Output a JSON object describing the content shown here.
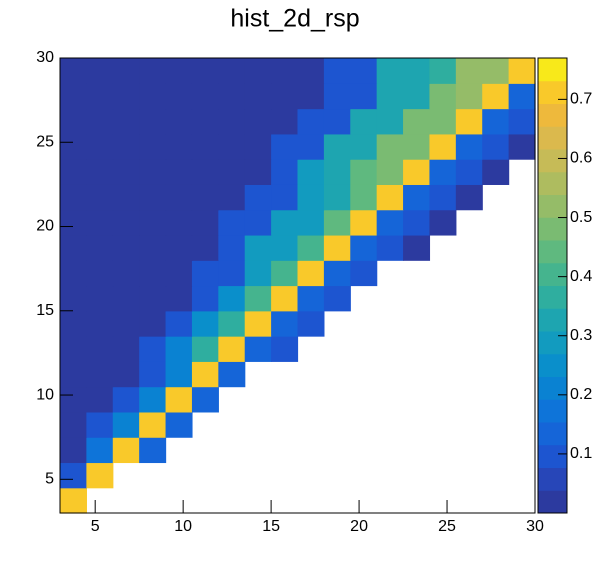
{
  "chart_data": {
    "type": "heatmap",
    "title": "hist_2d_rsp",
    "xbins": [
      3,
      4.5,
      6,
      7.5,
      9,
      10.5,
      12,
      13.5,
      15,
      16.5,
      18,
      19.5,
      21,
      22.5,
      24,
      25.5,
      27,
      28.5,
      30
    ],
    "ybins": [
      3,
      4.5,
      6,
      7.5,
      9,
      10.5,
      12,
      13.5,
      15,
      16.5,
      18,
      19.5,
      21,
      22.5,
      24,
      25.5,
      27,
      28.5,
      30
    ],
    "z": [
      [
        0.7,
        null,
        null,
        null,
        null,
        null,
        null,
        null,
        null,
        null,
        null,
        null,
        null,
        null,
        null,
        null,
        null,
        null
      ],
      [
        0.08,
        0.7,
        null,
        null,
        null,
        null,
        null,
        null,
        null,
        null,
        null,
        null,
        null,
        null,
        null,
        null,
        null,
        null
      ],
      [
        0.03,
        0.19,
        0.7,
        0.15,
        null,
        null,
        null,
        null,
        null,
        null,
        null,
        null,
        null,
        null,
        null,
        null,
        null,
        null
      ],
      [
        0.03,
        0.08,
        0.21,
        0.7,
        0.15,
        null,
        null,
        null,
        null,
        null,
        null,
        null,
        null,
        null,
        null,
        null,
        null,
        null
      ],
      [
        0.03,
        0.03,
        0.08,
        0.22,
        0.7,
        0.15,
        null,
        null,
        null,
        null,
        null,
        null,
        null,
        null,
        null,
        null,
        null,
        null
      ],
      [
        0.03,
        0.03,
        0.03,
        0.08,
        0.23,
        0.7,
        0.15,
        null,
        null,
        null,
        null,
        null,
        null,
        null,
        null,
        null,
        null,
        null
      ],
      [
        0.03,
        0.03,
        0.03,
        0.08,
        0.23,
        0.36,
        0.7,
        0.15,
        0.08,
        null,
        null,
        null,
        null,
        null,
        null,
        null,
        null,
        null
      ],
      [
        0.03,
        0.03,
        0.03,
        0.03,
        0.08,
        0.24,
        0.38,
        0.7,
        0.15,
        0.08,
        null,
        null,
        null,
        null,
        null,
        null,
        null,
        null
      ],
      [
        0.03,
        0.03,
        0.03,
        0.03,
        0.03,
        0.08,
        0.26,
        0.39,
        0.7,
        0.15,
        0.08,
        null,
        null,
        null,
        null,
        null,
        null,
        null
      ],
      [
        0.03,
        0.03,
        0.03,
        0.03,
        0.03,
        0.08,
        0.08,
        0.27,
        0.41,
        0.7,
        0.15,
        0.08,
        null,
        null,
        null,
        null,
        null,
        null
      ],
      [
        0.03,
        0.03,
        0.03,
        0.03,
        0.03,
        0.03,
        0.08,
        0.27,
        0.28,
        0.42,
        0.7,
        0.15,
        0.08,
        0.03,
        null,
        null,
        null,
        null
      ],
      [
        0.03,
        0.03,
        0.03,
        0.03,
        0.03,
        0.03,
        0.08,
        0.08,
        0.28,
        0.29,
        0.44,
        0.7,
        0.15,
        0.08,
        0.03,
        null,
        null,
        null
      ],
      [
        0.03,
        0.03,
        0.03,
        0.03,
        0.03,
        0.03,
        0.03,
        0.08,
        0.08,
        0.29,
        0.31,
        0.45,
        0.7,
        0.15,
        0.08,
        0.03,
        null,
        null
      ],
      [
        0.03,
        0.03,
        0.03,
        0.03,
        0.03,
        0.03,
        0.03,
        0.03,
        0.08,
        0.29,
        0.31,
        0.45,
        0.47,
        0.7,
        0.15,
        0.08,
        0.03,
        null
      ],
      [
        0.03,
        0.03,
        0.03,
        0.03,
        0.03,
        0.03,
        0.03,
        0.03,
        0.08,
        0.08,
        0.31,
        0.32,
        0.47,
        0.48,
        0.7,
        0.15,
        0.08,
        0.03
      ],
      [
        0.03,
        0.03,
        0.03,
        0.03,
        0.03,
        0.03,
        0.03,
        0.03,
        0.03,
        0.08,
        0.08,
        0.32,
        0.33,
        0.48,
        0.5,
        0.7,
        0.15,
        0.08
      ],
      [
        0.03,
        0.03,
        0.03,
        0.03,
        0.03,
        0.03,
        0.03,
        0.03,
        0.03,
        0.03,
        0.08,
        0.08,
        0.33,
        0.34,
        0.5,
        0.51,
        0.7,
        0.15
      ],
      [
        0.03,
        0.03,
        0.03,
        0.03,
        0.03,
        0.03,
        0.03,
        0.03,
        0.03,
        0.03,
        0.08,
        0.08,
        0.33,
        0.34,
        0.36,
        0.51,
        0.53,
        0.7
      ]
    ],
    "xlim": [
      3,
      30
    ],
    "ylim": [
      3,
      30
    ],
    "xticks": [
      5,
      10,
      15,
      20,
      25,
      30
    ],
    "yticks": [
      5,
      10,
      15,
      20,
      25,
      30
    ],
    "zlim": [
      0,
      0.77
    ],
    "zticks": [
      0.1,
      0.2,
      0.3,
      0.4,
      0.5,
      0.6,
      0.7
    ],
    "palette": [
      "#2c3a9f",
      "#2746b8",
      "#1d55d0",
      "#1565d8",
      "#0e74d9",
      "#0a82d2",
      "#0a8fcb",
      "#129bbf",
      "#1ea5b0",
      "#2fae9f",
      "#45b48e",
      "#5fb97f",
      "#7abb72",
      "#95bc68",
      "#aebc5f",
      "#c6bb57",
      "#dbb94d",
      "#eeb93c",
      "#f9c92a",
      "#f8e91a"
    ]
  }
}
